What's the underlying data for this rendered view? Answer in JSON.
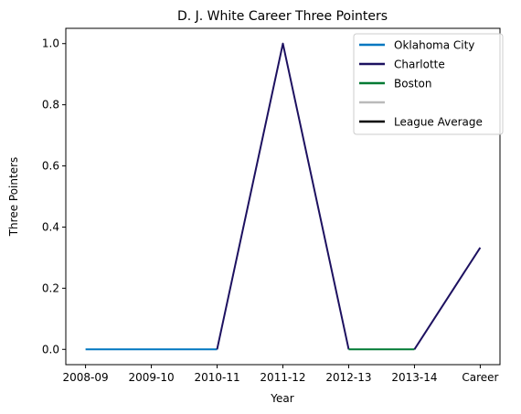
{
  "chart_data": {
    "type": "line",
    "title": "D. J. White Career Three Pointers",
    "xlabel": "Year",
    "ylabel": "Three Pointers",
    "categories": [
      "2008-09",
      "2009-10",
      "2010-11",
      "2011-12",
      "2012-13",
      "2013-14",
      "Career"
    ],
    "ylim": [
      -0.05,
      1.05
    ],
    "yticks": [
      "0.0",
      "0.2",
      "0.4",
      "0.6",
      "0.8",
      "1.0"
    ],
    "legend_position": "top-right",
    "grid": false,
    "series": [
      {
        "name": "Oklahoma City",
        "color": "#0077c0",
        "points": [
          [
            0,
            0
          ],
          [
            1,
            0
          ],
          [
            2,
            0
          ]
        ]
      },
      {
        "name": "Charlotte",
        "color": "#1d1160",
        "points": [
          [
            2,
            0
          ],
          [
            3,
            1
          ],
          [
            4,
            0
          ]
        ]
      },
      {
        "name": "Boston",
        "color": "#007a33",
        "points": [
          [
            4,
            0
          ],
          [
            5,
            0
          ]
        ]
      },
      {
        "name": "",
        "color": "#bababa",
        "points": []
      },
      {
        "name": "League Average",
        "color": "#000000",
        "points": []
      },
      {
        "name": "",
        "color": "#1d1160",
        "points": [
          [
            5,
            0
          ],
          [
            6,
            0.333
          ]
        ]
      }
    ],
    "legend": [
      {
        "name": "Oklahoma City",
        "color": "#0077c0"
      },
      {
        "name": "Charlotte",
        "color": "#1d1160"
      },
      {
        "name": "Boston",
        "color": "#007a33"
      },
      {
        "name": "",
        "color": "#bababa"
      },
      {
        "name": "League Average",
        "color": "#000000"
      }
    ]
  }
}
